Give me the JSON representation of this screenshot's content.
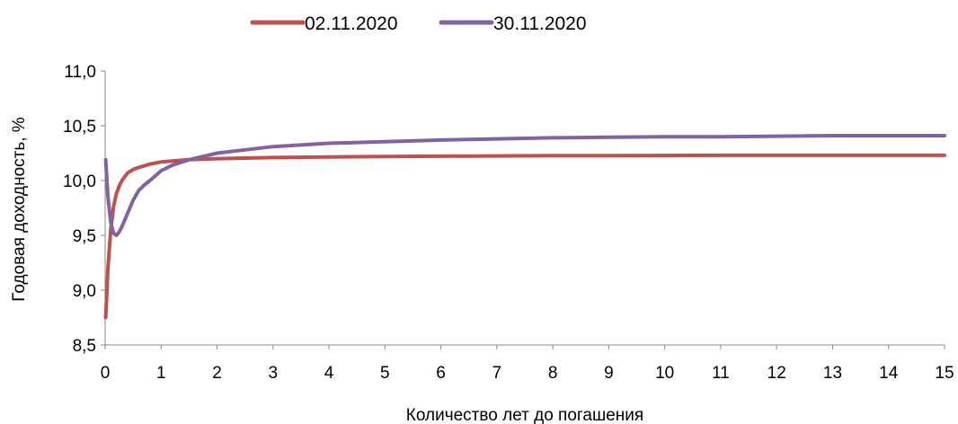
{
  "chart_data": {
    "type": "line",
    "title": "",
    "xlabel": "Количество лет до погашения",
    "ylabel": "Годовая доходность, %",
    "xlim": [
      0,
      15
    ],
    "ylim": [
      8.5,
      11.0
    ],
    "x_ticks": [
      "0",
      "1",
      "2",
      "3",
      "4",
      "5",
      "6",
      "7",
      "8",
      "9",
      "10",
      "11",
      "12",
      "13",
      "14",
      "15"
    ],
    "y_ticks": [
      "8,5",
      "9,0",
      "9,5",
      "10,0",
      "10,5",
      "11,0"
    ],
    "grid": false,
    "legend_position": "top",
    "series": [
      {
        "name": "02.11.2020",
        "color": "#c0504d",
        "x": [
          0.01,
          0.05,
          0.1,
          0.15,
          0.2,
          0.25,
          0.3,
          0.4,
          0.5,
          0.6,
          0.8,
          1.0,
          1.5,
          2,
          3,
          4,
          5,
          6,
          7,
          8,
          9,
          10,
          11,
          12,
          13,
          14,
          15
        ],
        "y": [
          8.75,
          9.2,
          9.55,
          9.76,
          9.88,
          9.95,
          10.0,
          10.07,
          10.1,
          10.12,
          10.15,
          10.17,
          10.19,
          10.2,
          10.21,
          10.215,
          10.22,
          10.222,
          10.225,
          10.227,
          10.228,
          10.229,
          10.23,
          10.23,
          10.23,
          10.23,
          10.23
        ]
      },
      {
        "name": "30.11.2020",
        "color": "#8064a2",
        "x": [
          0.01,
          0.05,
          0.1,
          0.15,
          0.2,
          0.25,
          0.3,
          0.4,
          0.5,
          0.6,
          0.7,
          0.8,
          1.0,
          1.2,
          1.5,
          2,
          2.5,
          3,
          4,
          5,
          6,
          7,
          8,
          9,
          10,
          11,
          12,
          13,
          14,
          15
        ],
        "y": [
          10.19,
          9.85,
          9.62,
          9.52,
          9.5,
          9.53,
          9.58,
          9.7,
          9.82,
          9.91,
          9.96,
          10.0,
          10.09,
          10.14,
          10.19,
          10.25,
          10.28,
          10.31,
          10.34,
          10.355,
          10.37,
          10.38,
          10.39,
          10.395,
          10.4,
          10.4,
          10.405,
          10.41,
          10.41,
          10.41
        ]
      }
    ]
  }
}
